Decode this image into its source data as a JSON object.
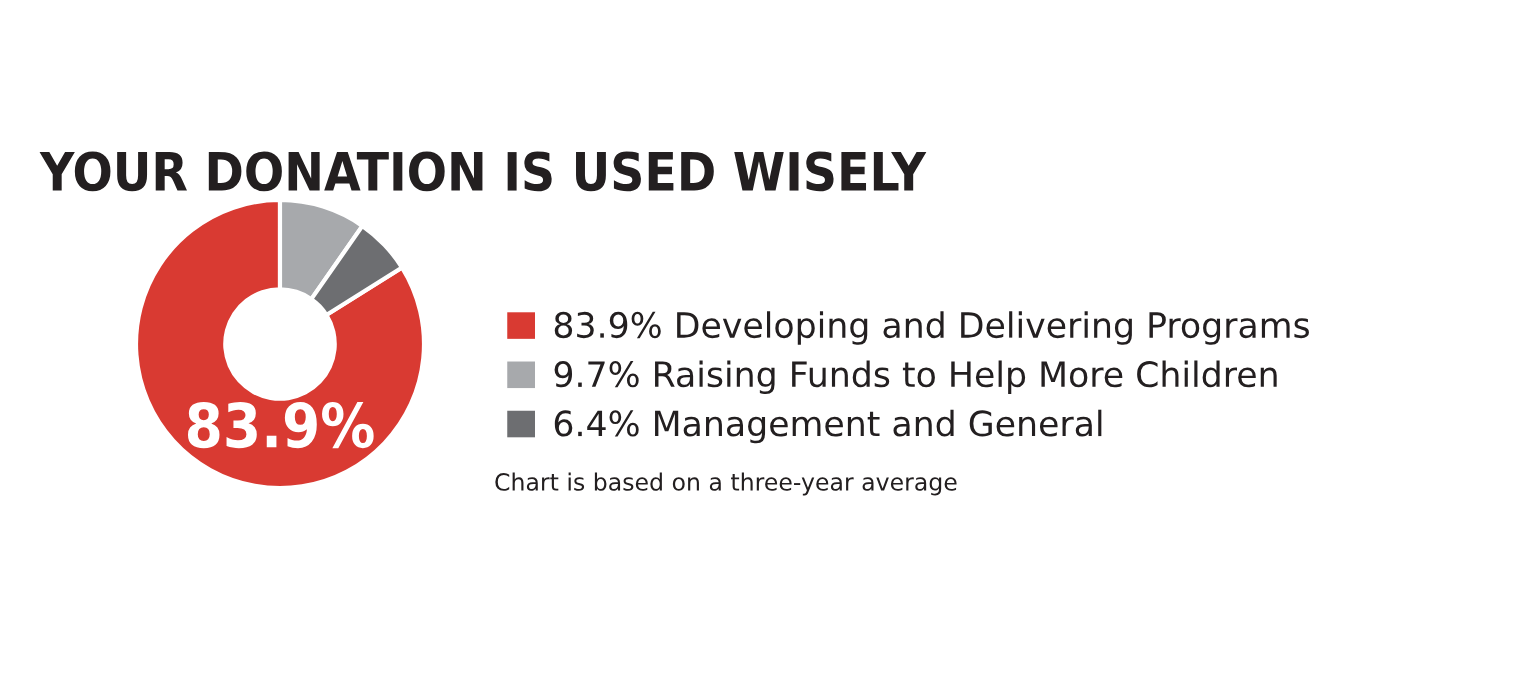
{
  "chart_data": {
    "type": "donut",
    "title": "YOUR DONATION IS USED WISELY",
    "categories": [
      "83.9% Developing and Delivering Programs",
      "9.7% Raising Funds to Help More Children",
      "6.4% Management and General"
    ],
    "values": [
      83.9,
      9.7,
      6.4
    ],
    "colors": [
      "#d93a32",
      "#a7a9ac",
      "#6d6e71"
    ],
    "legend": "right",
    "annotations": [
      "83.9%",
      "Chart is based on a three-year average"
    ]
  }
}
